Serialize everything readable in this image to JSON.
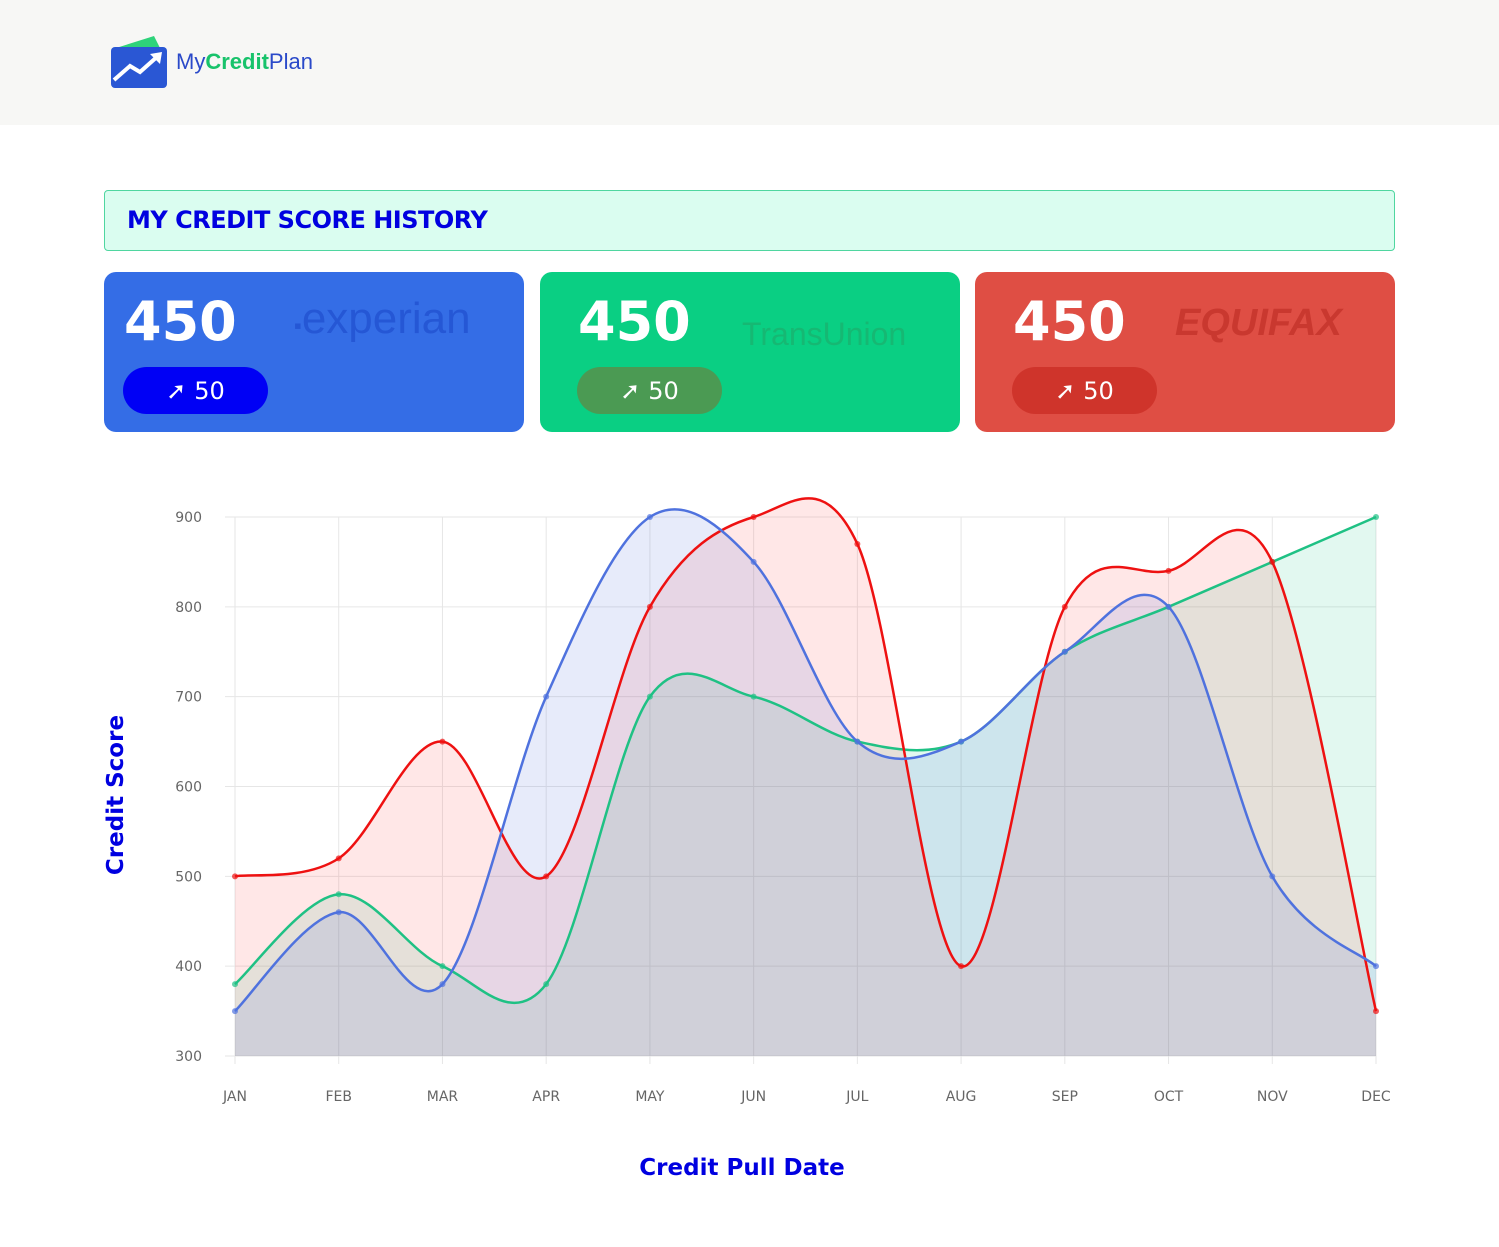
{
  "brand": {
    "name_prefix": "My",
    "name_mid": "Credit",
    "name_suffix": "Plan"
  },
  "banner": {
    "title": "MY CREDIT SCORE HISTORY"
  },
  "cards": [
    {
      "bureau": "experian",
      "score": "450",
      "change": "50",
      "bg": "#346de6",
      "pill": "#0000f5"
    },
    {
      "bureau": "TransUnion",
      "score": "450",
      "change": "50",
      "bg": "#0acf83",
      "pill": "#4b9a53"
    },
    {
      "bureau": "EQUIFAX",
      "score": "450",
      "change": "50",
      "bg": "#df4e44",
      "pill": "#cf342b"
    }
  ],
  "chart_data": {
    "type": "area",
    "xlabel": "Credit Pull Date",
    "ylabel": "Credit Score",
    "categories": [
      "JAN",
      "FEB",
      "MAR",
      "APR",
      "MAY",
      "JUN",
      "JUL",
      "AUG",
      "SEP",
      "OCT",
      "NOV",
      "DEC"
    ],
    "yticks": [
      300,
      400,
      500,
      600,
      700,
      800,
      900
    ],
    "ylim": [
      300,
      900
    ],
    "grid": true,
    "series": [
      {
        "name": "TransUnion",
        "color": "#1fc184",
        "fill": "rgba(20,200,130,0.12)",
        "values": [
          380,
          480,
          400,
          380,
          700,
          700,
          650,
          650,
          750,
          800,
          850,
          900
        ]
      },
      {
        "name": "Equifax",
        "color": "#ee1111",
        "fill": "rgba(255,60,60,0.12)",
        "values": [
          500,
          520,
          650,
          500,
          800,
          900,
          870,
          400,
          800,
          840,
          850,
          350
        ]
      },
      {
        "name": "Experian",
        "color": "#4f72de",
        "fill": "rgba(70,100,220,0.13)",
        "values": [
          350,
          460,
          380,
          700,
          900,
          850,
          650,
          650,
          750,
          800,
          500,
          400
        ]
      }
    ]
  }
}
